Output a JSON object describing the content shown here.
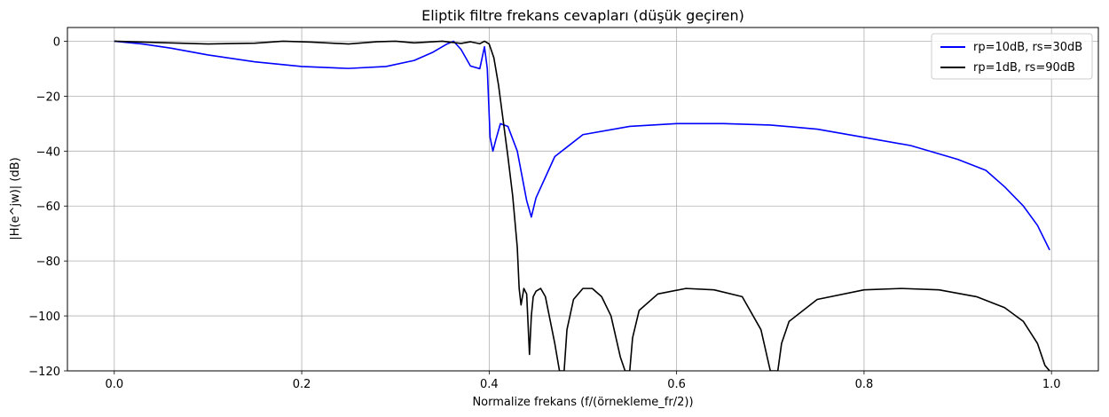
{
  "chart_data": {
    "type": "line",
    "title": "Eliptik filtre frekans cevapları (düşük geçiren)",
    "xlabel": "Normalize frekans (f/(örnekleme_fr/2))",
    "ylabel": "|H(e^jw)| (dB)",
    "xlim": [
      -0.05,
      1.05
    ],
    "ylim": [
      -120,
      5
    ],
    "xticks": [
      0.0,
      0.2,
      0.4,
      0.6,
      0.8,
      1.0
    ],
    "xtick_labels": [
      "0.0",
      "0.2",
      "0.4",
      "0.6",
      "0.8",
      "1.0"
    ],
    "yticks": [
      0,
      -20,
      -40,
      -60,
      -80,
      -100,
      -120
    ],
    "ytick_labels": [
      "0",
      "−20",
      "−40",
      "−60",
      "−80",
      "−100",
      "−120"
    ],
    "grid": true,
    "legend_position": "top-right",
    "series": [
      {
        "name": "rp=10dB, rs=30dB",
        "color": "#0000ff",
        "x": [
          0.0,
          0.03,
          0.06,
          0.1,
          0.15,
          0.2,
          0.25,
          0.29,
          0.32,
          0.34,
          0.355,
          0.362,
          0.37,
          0.38,
          0.39,
          0.395,
          0.398,
          0.401,
          0.404,
          0.407,
          0.412,
          0.42,
          0.43,
          0.44,
          0.445,
          0.45,
          0.47,
          0.5,
          0.55,
          0.6,
          0.65,
          0.7,
          0.75,
          0.8,
          0.85,
          0.9,
          0.93,
          0.95,
          0.97,
          0.985,
          0.998
        ],
        "y": [
          0,
          -1,
          -2.5,
          -5,
          -7.5,
          -9.2,
          -9.9,
          -9.2,
          -7,
          -4,
          -1,
          0,
          -3,
          -9,
          -10,
          -2,
          -10,
          -35,
          -40,
          -36,
          -30,
          -31,
          -40,
          -58,
          -64,
          -57,
          -42,
          -34,
          -31,
          -30,
          -30,
          -30.5,
          -32,
          -35,
          -38,
          -43,
          -47,
          -53,
          -60,
          -67,
          -76
        ]
      },
      {
        "name": "rp=1dB, rs=90dB",
        "color": "#000000",
        "x": [
          0.0,
          0.05,
          0.1,
          0.15,
          0.18,
          0.21,
          0.25,
          0.28,
          0.3,
          0.32,
          0.35,
          0.37,
          0.38,
          0.39,
          0.395,
          0.4,
          0.405,
          0.41,
          0.415,
          0.42,
          0.425,
          0.43,
          0.432,
          0.434,
          0.437,
          0.44,
          0.443,
          0.445,
          0.447,
          0.45,
          0.455,
          0.46,
          0.47,
          0.475,
          0.478,
          0.48,
          0.483,
          0.49,
          0.5,
          0.51,
          0.52,
          0.53,
          0.54,
          0.545,
          0.547,
          0.55,
          0.553,
          0.56,
          0.58,
          0.61,
          0.64,
          0.67,
          0.69,
          0.7,
          0.705,
          0.708,
          0.712,
          0.72,
          0.75,
          0.8,
          0.84,
          0.88,
          0.92,
          0.95,
          0.97,
          0.985,
          0.993,
          0.998
        ],
        "y": [
          0,
          -0.5,
          -1,
          -0.7,
          0,
          -0.3,
          -1,
          -0.2,
          0,
          -0.6,
          0,
          -0.8,
          -0.2,
          -0.9,
          0,
          -1,
          -6,
          -16,
          -29,
          -42,
          -56,
          -75,
          -90,
          -96,
          -90,
          -92,
          -114,
          -100,
          -93,
          -91,
          -90,
          -93,
          -110,
          -120,
          -120,
          -120,
          -105,
          -94,
          -90,
          -90,
          -93,
          -100,
          -115,
          -120,
          -120,
          -120,
          -108,
          -98,
          -92,
          -90,
          -90.5,
          -93,
          -105,
          -120,
          -120,
          -120,
          -110,
          -102,
          -94,
          -90.5,
          -90,
          -90.5,
          -93,
          -97,
          -102,
          -110,
          -118,
          -120
        ]
      }
    ]
  }
}
